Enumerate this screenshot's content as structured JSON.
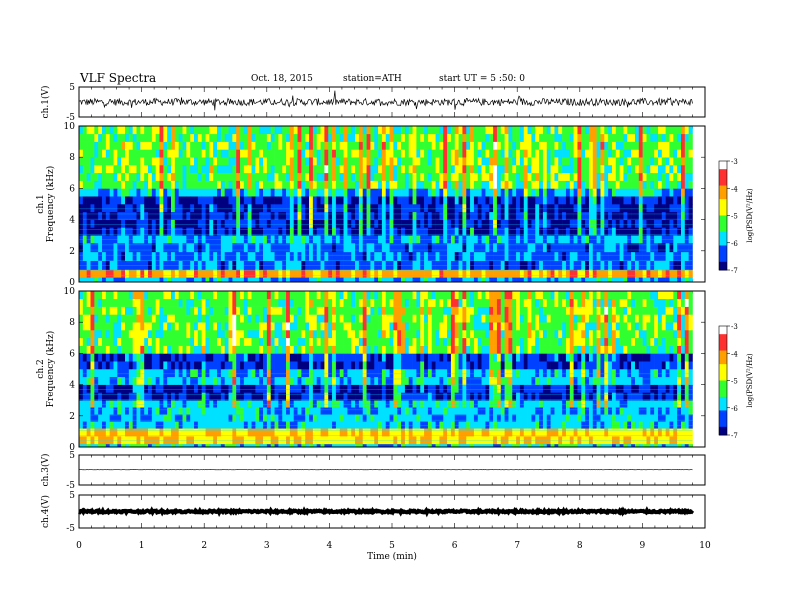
{
  "header": {
    "title": "VLF  Spectra",
    "date": "Oct. 18, 2015",
    "station": "station=ATH",
    "start": "start  UT  =   5  :50: 0"
  },
  "colorbar": {
    "label": "log(PSD(V²/Hz)",
    "ticks": [
      "-3",
      "-4",
      "-5",
      "-6",
      "-7"
    ],
    "colors": [
      "#ffffff",
      "#ff3030",
      "#ffa000",
      "#ffff00",
      "#30ff30",
      "#00e0ff",
      "#0040ff",
      "#000080"
    ]
  },
  "chart_data": [
    {
      "type": "line",
      "panel": "ch1-waveform",
      "ylabel": "ch.1(V)",
      "ylim": [
        -5,
        5
      ],
      "yticks": [
        "5",
        "-5"
      ],
      "xlim": [
        0,
        10
      ],
      "series": [
        {
          "values_description_free": true,
          "x_range": [
            0,
            9.8
          ],
          "mean": 0.0,
          "amplitude_typical": 1.2,
          "color": "#000000"
        }
      ]
    },
    {
      "type": "heatmap",
      "panel": "ch1-spectrogram",
      "ylabel": "ch.1\nFrequency  (kHz)",
      "ylim": [
        0,
        10
      ],
      "yticks": [
        "0",
        "2",
        "4",
        "6",
        "8",
        "10"
      ],
      "xlim": [
        0,
        10
      ],
      "x_data_end": 9.8,
      "band_levels_logpsd": [
        {
          "f": [
            0,
            0.3
          ],
          "level": -6.0
        },
        {
          "f": [
            0.3,
            0.8
          ],
          "level": -4.2
        },
        {
          "f": [
            0.8,
            2.5
          ],
          "level": -6.3
        },
        {
          "f": [
            2.5,
            3.0
          ],
          "level": -6.0
        },
        {
          "f": [
            3.0,
            5.5
          ],
          "level": -6.8
        },
        {
          "f": [
            5.5,
            6.0
          ],
          "level": -6.0
        },
        {
          "f": [
            6.0,
            10.0
          ],
          "level": -5.3
        }
      ],
      "colorbar_range": [
        -7,
        -3
      ]
    },
    {
      "type": "heatmap",
      "panel": "ch2-spectrogram",
      "ylabel": "ch.2\nFrequency  (kHz)",
      "ylim": [
        0,
        10
      ],
      "yticks": [
        "0",
        "2",
        "4",
        "6",
        "8",
        "10"
      ],
      "xlim": [
        0,
        10
      ],
      "x_data_end": 9.8,
      "band_levels_logpsd": [
        {
          "f": [
            0,
            0.2
          ],
          "level": -5.8
        },
        {
          "f": [
            0.2,
            1.2
          ],
          "level": -4.5
        },
        {
          "f": [
            1.2,
            3.0
          ],
          "level": -5.9
        },
        {
          "f": [
            3.0,
            4.0
          ],
          "level": -6.7
        },
        {
          "f": [
            4.0,
            5.0
          ],
          "level": -6.0
        },
        {
          "f": [
            5.0,
            6.0
          ],
          "level": -6.6
        },
        {
          "f": [
            6.0,
            10.0
          ],
          "level": -5.3
        }
      ],
      "colorbar_range": [
        -7,
        -3
      ]
    },
    {
      "type": "line",
      "panel": "ch3-waveform",
      "ylabel": "ch.3(V)",
      "ylim": [
        -5,
        5
      ],
      "yticks": [
        "5",
        "-5"
      ],
      "xlim": [
        0,
        10
      ],
      "series": [
        {
          "x_range": [
            0,
            9.8
          ],
          "mean": 0.1,
          "amplitude_typical": 0.05,
          "color": "#000000"
        }
      ]
    },
    {
      "type": "line",
      "panel": "ch4-waveform",
      "ylabel": "ch.4(V)",
      "ylim": [
        -5,
        5
      ],
      "yticks": [
        "5",
        "-5"
      ],
      "xlim": [
        0,
        10
      ],
      "xlabel": "Time  (min)",
      "xticks": [
        "0",
        "1",
        "2",
        "3",
        "4",
        "5",
        "6",
        "7",
        "8",
        "9",
        "10"
      ],
      "series": [
        {
          "x_range": [
            0,
            9.8
          ],
          "mean": 0.0,
          "amplitude_typical": 0.3,
          "color": "#000000"
        }
      ]
    }
  ]
}
